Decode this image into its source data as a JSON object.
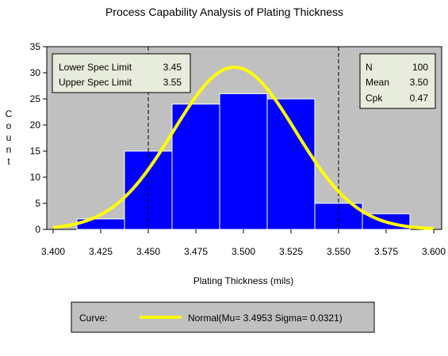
{
  "chart_data": {
    "type": "bar",
    "title": "Process Capability Analysis of Plating Thickness",
    "xlabel": "Plating Thickness (mils)",
    "ylabel": "Count",
    "xlim": [
      3.4,
      3.6
    ],
    "ylim": [
      0,
      35
    ],
    "x_ticks": [
      "3.400",
      "3.425",
      "3.450",
      "3.475",
      "3.500",
      "3.525",
      "3.550",
      "3.575",
      "3.600"
    ],
    "y_ticks": [
      "0",
      "5",
      "10",
      "15",
      "20",
      "25",
      "30",
      "35"
    ],
    "bins": [
      {
        "from": 3.4125,
        "to": 3.4375,
        "value": 2
      },
      {
        "from": 3.4375,
        "to": 3.4625,
        "value": 15
      },
      {
        "from": 3.4625,
        "to": 3.4875,
        "value": 24
      },
      {
        "from": 3.4875,
        "to": 3.5125,
        "value": 26
      },
      {
        "from": 3.5125,
        "to": 3.5375,
        "value": 25
      },
      {
        "from": 3.5375,
        "to": 3.5625,
        "value": 5
      },
      {
        "from": 3.5625,
        "to": 3.5875,
        "value": 3
      }
    ],
    "spec_limits": {
      "lower": 3.45,
      "upper": 3.55,
      "rows": [
        {
          "label": "Lower Spec Limit",
          "value": "3.45"
        },
        {
          "label": "Upper Spec Limit",
          "value": "3.55"
        }
      ]
    },
    "stats": [
      {
        "label": "N",
        "value": "100"
      },
      {
        "label": "Mean",
        "value": "3.50"
      },
      {
        "label": "Cpk",
        "value": "0.47"
      }
    ],
    "curve": {
      "mu": 3.4953,
      "sigma": 0.0321,
      "n": 100,
      "bin_width": 0.025,
      "legend_title": "Curve:",
      "legend_label": "Normal(Mu= 3.4953 Sigma= 0.0321)"
    },
    "colors": {
      "bar": "#0000ff",
      "bar_edge": "#ffffff",
      "plot_bg": "#c0c0c0",
      "curve": "#ffff00",
      "box_bg": "#e8ecdc"
    },
    "grid": false
  }
}
